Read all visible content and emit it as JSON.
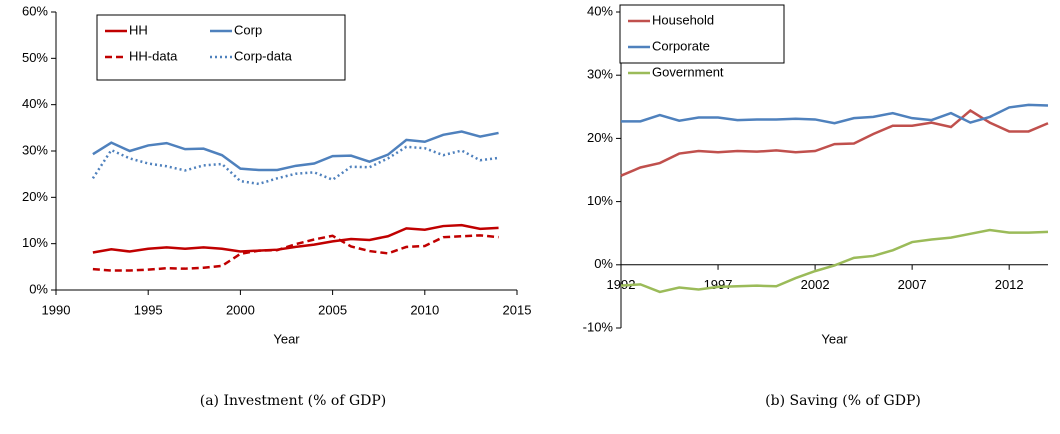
{
  "chart_data": [
    {
      "type": "line",
      "caption": "(a) Investment (% of GDP)",
      "x_label": "Year",
      "x": [
        1992,
        1993,
        1994,
        1995,
        1996,
        1997,
        1998,
        1999,
        2000,
        2001,
        2002,
        2003,
        2004,
        2005,
        2006,
        2007,
        2008,
        2009,
        2010,
        2011,
        2012,
        2013,
        2014
      ],
      "xlim": [
        1990,
        2015
      ],
      "xticks": [
        1990,
        1995,
        2000,
        2005,
        2010,
        2015
      ],
      "ylim": [
        0,
        60
      ],
      "yticks": [
        {
          "value": 0,
          "label": "0%"
        },
        {
          "value": 10,
          "label": "10%"
        },
        {
          "value": 20,
          "label": "20%"
        },
        {
          "value": 30,
          "label": "30%"
        },
        {
          "value": 40,
          "label": "40%"
        },
        {
          "value": 50,
          "label": "50%"
        },
        {
          "value": 60,
          "label": "60%"
        }
      ],
      "series": [
        {
          "name": "HH",
          "color": "#c00000",
          "dash": "solid",
          "values": [
            8.1,
            8.8,
            8.3,
            8.9,
            9.2,
            8.9,
            9.2,
            8.9,
            8.3,
            8.5,
            8.7,
            9.3,
            9.8,
            10.5,
            11,
            10.8,
            11.6,
            13.3,
            13,
            13.8,
            14,
            13.2,
            13.4
          ]
        },
        {
          "name": "Corp",
          "color": "#4f81bd",
          "dash": "solid",
          "values": [
            29.3,
            31.8,
            30,
            31.2,
            31.7,
            30.4,
            30.5,
            29.1,
            26.2,
            25.9,
            25.9,
            26.8,
            27.3,
            28.9,
            29,
            27.7,
            29.2,
            32.4,
            32,
            33.5,
            34.2,
            33.1,
            33.9
          ]
        },
        {
          "name": "HH-data",
          "color": "#c00000",
          "dash": "dashed",
          "values": [
            4.5,
            4.2,
            4.2,
            4.4,
            4.7,
            4.6,
            4.8,
            5.2,
            7.8,
            8.5,
            8.6,
            9.9,
            10.9,
            11.7,
            9.4,
            8.4,
            7.9,
            9.3,
            9.5,
            11.4,
            11.6,
            11.8,
            11.4
          ]
        },
        {
          "name": "Corp-data",
          "color": "#4f81bd",
          "dash": "dotted",
          "values": [
            24.1,
            30.2,
            28.4,
            27.3,
            26.7,
            25.8,
            26.9,
            27.2,
            23.5,
            22.9,
            24.1,
            25.1,
            25.4,
            23.8,
            26.6,
            26.5,
            28.4,
            30.9,
            30.6,
            29.1,
            30.1,
            28,
            28.5
          ]
        }
      ]
    },
    {
      "type": "line",
      "caption": "(b) Saving (% of GDP)",
      "x_label": "Year",
      "x": [
        1992,
        1993,
        1994,
        1995,
        1996,
        1997,
        1998,
        1999,
        2000,
        2001,
        2002,
        2003,
        2004,
        2005,
        2006,
        2007,
        2008,
        2009,
        2010,
        2011,
        2012,
        2013,
        2014
      ],
      "xlim": [
        1992,
        2014
      ],
      "xticks": [
        1992,
        1997,
        2002,
        2007,
        2012
      ],
      "ylim": [
        -10,
        40
      ],
      "yticks": [
        {
          "value": -10,
          "label": "-10%"
        },
        {
          "value": 0,
          "label": "0%"
        },
        {
          "value": 10,
          "label": "10%"
        },
        {
          "value": 20,
          "label": "20%"
        },
        {
          "value": 30,
          "label": "30%"
        },
        {
          "value": 40,
          "label": "40%"
        }
      ],
      "series": [
        {
          "name": "Household",
          "color": "#c0504d",
          "dash": "solid",
          "values": [
            14.1,
            15.4,
            16.1,
            17.6,
            18,
            17.8,
            18,
            17.9,
            18.1,
            17.8,
            18,
            19.1,
            19.2,
            20.7,
            22,
            22,
            22.5,
            21.8,
            24.4,
            22.5,
            21.1,
            21.1,
            22.4
          ]
        },
        {
          "name": "Corporate",
          "color": "#4f81bd",
          "dash": "solid",
          "values": [
            22.7,
            22.7,
            23.7,
            22.8,
            23.3,
            23.3,
            22.9,
            23,
            23,
            23.1,
            23,
            22.4,
            23.2,
            23.4,
            24,
            23.2,
            22.9,
            24,
            22.5,
            23.4,
            24.9,
            25.3,
            25.2
          ]
        },
        {
          "name": "Government",
          "color": "#9bbb59",
          "dash": "solid",
          "values": [
            -3.3,
            -3.1,
            -4.3,
            -3.6,
            -3.9,
            -3.5,
            -3.4,
            -3.3,
            -3.4,
            -2.1,
            -1,
            -0.1,
            1.1,
            1.4,
            2.3,
            3.6,
            4,
            4.3,
            4.9,
            5.5,
            5.1,
            5.1,
            5.2
          ]
        }
      ]
    }
  ]
}
